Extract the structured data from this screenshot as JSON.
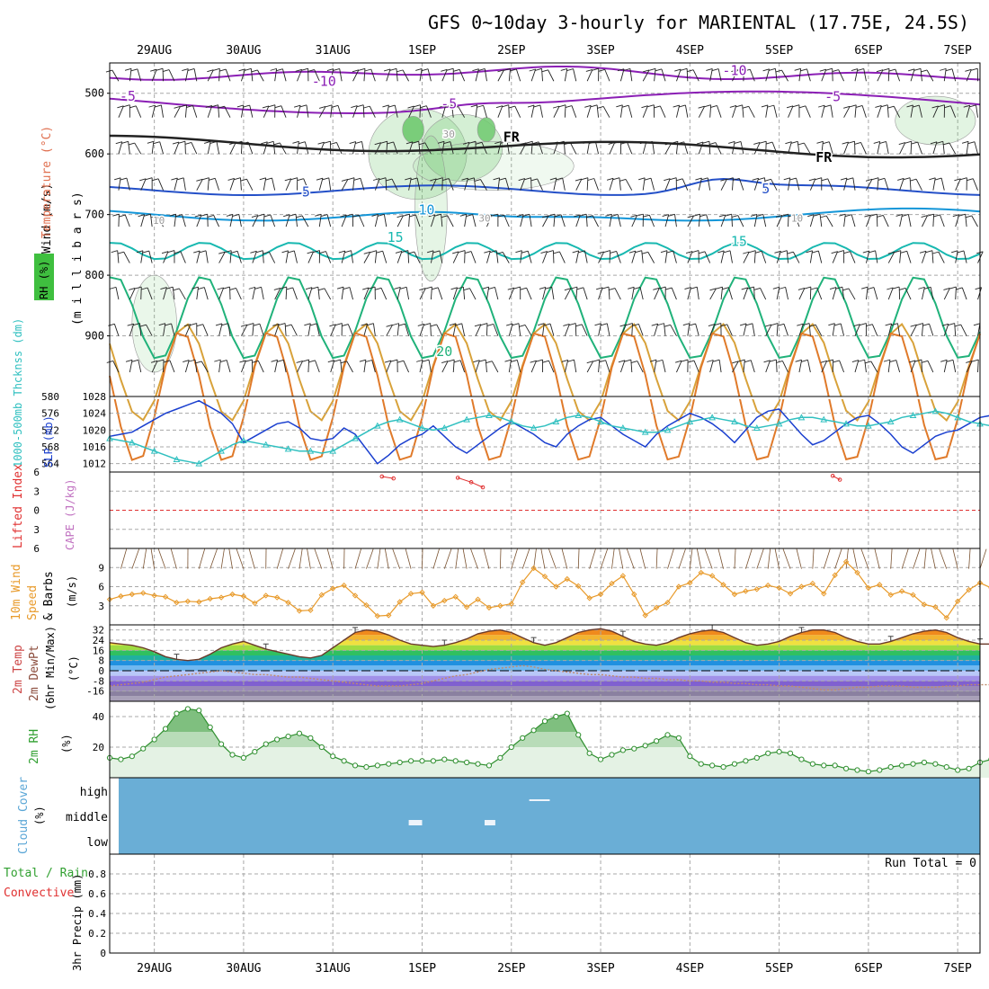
{
  "title": "GFS 0~10day 3-hourly for MARIENTAL (17.75E, 24.5S)",
  "colors": {
    "temp_minus": "#8b1fb5",
    "temp_zero": "#222222",
    "temp_5": "#2450c8",
    "temp_10": "#1496d8",
    "temp_15": "#17b8b0",
    "temp_20": "#20b27a",
    "temp_25": "#d8a23a",
    "temp_30": "#e07a2a",
    "rh_fill": "#6fc96f",
    "slp": "#1a3fcf",
    "thickness": "#30c0c0",
    "lifted_index": "#e03030",
    "wind10": "#e89a2a",
    "rh2m": "#2f8f2f",
    "cloud_fill": "#6aaed6",
    "grid": "#a8a8a8"
  },
  "chart_data": [
    {
      "panel": "upper-air",
      "type": "heatmap",
      "xlabel": "",
      "ylabel": "(m i l l i b a r s)",
      "legend_labels": [
        "Wind (m/s)",
        "Temperature (°C)",
        "RH (%)"
      ],
      "x_ticks_top": [
        "29AUG",
        "30AUG",
        "31AUG",
        "1SEP",
        "2SEP",
        "3SEP",
        "4SEP",
        "5SEP",
        "6SEP",
        "7SEP"
      ],
      "y_ticks": [
        500,
        600,
        700,
        800,
        900
      ],
      "ylim": [
        1000,
        450
      ],
      "contour_labels": [
        {
          "text": "-5",
          "pressure": 512,
          "day": 28.7
        },
        {
          "text": "-10",
          "pressure": 488,
          "day": 30.9
        },
        {
          "text": "-5",
          "pressure": 525,
          "day": 32.3
        },
        {
          "text": "-10",
          "pressure": 470,
          "day": 35.5
        },
        {
          "text": "-5",
          "pressure": 513,
          "day": 36.6
        },
        {
          "text": "FR",
          "pressure": 580,
          "day": 33.0
        },
        {
          "text": "FR",
          "pressure": 613,
          "day": 36.5
        },
        {
          "text": "5",
          "pressure": 670,
          "day": 30.7
        },
        {
          "text": "5",
          "pressure": 665,
          "day": 35.85
        },
        {
          "text": "10",
          "pressure": 700,
          "day": 32.05
        },
        {
          "text": "10",
          "pressure": 712,
          "day": 36.2
        },
        {
          "text": "15",
          "pressure": 745,
          "day": 31.7
        },
        {
          "text": "15",
          "pressure": 752,
          "day": 35.55
        },
        {
          "text": "20",
          "pressure": 933,
          "day": 32.25
        },
        {
          "text": "10",
          "pressure": 715,
          "day": 29.05
        },
        {
          "text": "30",
          "pressure": 573,
          "day": 32.3
        },
        {
          "text": "30",
          "pressure": 712,
          "day": 32.7
        }
      ]
    },
    {
      "panel": "slp-thickness",
      "type": "line",
      "ylabel_left": "1000-500mb Thcknss (dm)",
      "ylabel_right": "SLP (mb)",
      "y_ticks_left": [
        564,
        568,
        572,
        576,
        580
      ],
      "y_ticks_right": [
        1012,
        1016,
        1020,
        1024,
        1028
      ],
      "ylim_right": [
        1010,
        1028
      ],
      "ylim_left": [
        562,
        580
      ],
      "x_start_day": 28.5,
      "x_step_hours": 3,
      "series": [
        {
          "name": "SLP (mb)",
          "axis": "right",
          "values": [
            1018.5,
            1019,
            1019.5,
            1021,
            1022.5,
            1024,
            1025,
            1026,
            1027,
            1025.5,
            1024,
            1021.5,
            1017,
            1018.5,
            1020,
            1021.5,
            1022,
            1020.5,
            1018,
            1017.5,
            1018,
            1020.5,
            1019,
            1015.5,
            1012,
            1014,
            1016.5,
            1018,
            1019,
            1021,
            1018.5,
            1016,
            1014.5,
            1016.5,
            1018.5,
            1020.5,
            1022,
            1020.5,
            1019,
            1017,
            1016,
            1019,
            1021,
            1022.5,
            1023,
            1021,
            1019,
            1017.5,
            1016,
            1019,
            1021,
            1022.5,
            1024,
            1023,
            1021.5,
            1019.5,
            1017,
            1020,
            1023,
            1024.5,
            1025,
            1022,
            1019,
            1016.5,
            1017.5,
            1019.5,
            1021.5,
            1023,
            1023.5,
            1021.5,
            1019,
            1016,
            1014.5,
            1016.5,
            1018.5,
            1019.5,
            1020,
            1021.5,
            1023,
            1023.5,
            1021,
            1017.5,
            1015,
            1017.5,
            1019,
            1020,
            1020.5,
            1021.5,
            1024,
            1023.5,
            1020,
            1016.5,
            1015.5,
            1017,
            1018.5,
            1019.5,
            1021,
            1022.5
          ]
        },
        {
          "name": "Thickness (dm)",
          "axis": "left",
          "values": [
            570,
            569.5,
            569,
            568,
            567,
            566,
            565,
            564.5,
            564,
            565.5,
            567,
            568.5,
            569.5,
            569,
            568.5,
            568,
            567.5,
            567,
            567,
            566.5,
            567,
            568.5,
            570,
            571.5,
            573,
            574,
            574.5,
            573.5,
            572.5,
            572,
            572.5,
            573.5,
            574.5,
            575,
            575.5,
            575,
            574,
            573,
            572.5,
            573,
            574,
            575,
            575.5,
            575,
            574,
            573,
            572.5,
            572,
            571.5,
            571.5,
            572,
            573,
            574,
            574.5,
            575,
            574.5,
            574,
            573,
            572.5,
            573,
            573.5,
            574.5,
            575,
            575,
            574.5,
            574,
            573.5,
            573,
            573,
            573.5,
            574,
            575,
            575.5,
            576,
            576.5,
            576,
            575,
            574,
            573.5,
            573,
            573,
            573.5,
            574.5,
            575.5,
            576.5,
            577,
            576.5,
            575.5,
            574.5,
            573.5,
            573,
            572.5,
            572.5,
            571.5,
            571,
            571.5,
            572,
            573
          ]
        }
      ]
    },
    {
      "panel": "lifted-index",
      "type": "line",
      "ylabel_left": "Lifted Index",
      "ylabel_right": "CAPE (J/kg)",
      "y_ticks": [
        -6,
        -3,
        0,
        3,
        6
      ],
      "y_tick_labels": [
        "6",
        "3",
        "0",
        "3",
        "6"
      ],
      "ylim": [
        -6,
        6
      ],
      "series": [
        {
          "name": "Lifted Index segment 1",
          "x_days": [
            31.55,
            31.68
          ],
          "values": [
            -5.3,
            -5.0
          ]
        },
        {
          "name": "Lifted Index segment 2",
          "x_days": [
            32.4,
            32.55,
            32.68
          ],
          "values": [
            -5.1,
            -4.4,
            -3.6
          ]
        },
        {
          "name": "Lifted Index segment 3",
          "x_days": [
            36.6,
            36.68
          ],
          "values": [
            -5.4,
            -4.8
          ]
        }
      ]
    },
    {
      "panel": "wind10m",
      "type": "line",
      "ylabel": "10m Wind Speed & Barbs (m/s)",
      "y_ticks": [
        3,
        6,
        9
      ],
      "ylim": [
        0,
        12
      ],
      "x_start_day": 28.5,
      "x_step_hours": 3,
      "series": [
        {
          "name": "10m Wind Speed",
          "values": [
            4.0,
            4.5,
            4.8,
            5.0,
            4.6,
            4.4,
            3.5,
            3.7,
            3.6,
            4.1,
            4.3,
            4.8,
            4.5,
            3.4,
            4.6,
            4.3,
            3.5,
            2.2,
            2.3,
            4.7,
            5.7,
            6.2,
            4.6,
            3.1,
            1.4,
            1.5,
            3.6,
            4.9,
            5.1,
            3.0,
            3.8,
            4.4,
            2.8,
            4.0,
            2.7,
            3.0,
            3.3,
            6.7,
            8.9,
            7.6,
            6.0,
            7.2,
            6.1,
            4.2,
            4.8,
            6.5,
            7.7,
            4.8,
            1.5,
            2.7,
            3.5,
            6.0,
            6.6,
            8.2,
            7.7,
            6.3,
            4.8,
            5.3,
            5.6,
            6.2,
            5.8,
            4.9,
            6.0,
            6.5,
            4.9,
            7.8,
            9.9,
            8.2,
            5.8,
            6.3,
            4.7,
            5.3,
            4.7,
            3.2,
            2.8,
            1.1,
            3.7,
            5.5,
            6.6,
            5.8,
            4.3,
            5.0,
            3.8,
            4.3,
            4.7,
            4.9,
            5.2,
            5.6,
            6.0,
            5.5,
            4.8,
            6.1,
            8.0,
            5.4,
            5.0,
            5.0,
            6.0,
            5.4
          ]
        }
      ]
    },
    {
      "panel": "temp2m",
      "type": "line",
      "ylabel": "2m Temp 2m DewPt (6hr Min/Max) (°C)",
      "y_ticks": [
        -16,
        -8,
        0,
        8,
        16,
        24,
        32
      ],
      "ylim": [
        -24,
        36
      ],
      "x_start_day": 28.5,
      "x_step_hours": 3,
      "series": [
        {
          "name": "2m Temp",
          "values": [
            22,
            21,
            20,
            18,
            15,
            11,
            9,
            8,
            9,
            13,
            18,
            21,
            23,
            20,
            17,
            15,
            13,
            11,
            10,
            12,
            18,
            24,
            30,
            32,
            31,
            28,
            24,
            21,
            20,
            19,
            20,
            22,
            25,
            29,
            31,
            32,
            30,
            26,
            22,
            20,
            22,
            26,
            30,
            32,
            33,
            31,
            27,
            23,
            21,
            20,
            22,
            26,
            29,
            31,
            32,
            30,
            26,
            22,
            20,
            21,
            23,
            27,
            30,
            32,
            32,
            30,
            26,
            23,
            21,
            21,
            23,
            26,
            29,
            31,
            32,
            30,
            26,
            23,
            21,
            21,
            23,
            27,
            31,
            33,
            33,
            31,
            27,
            24,
            22,
            22,
            24,
            28,
            32,
            34,
            33,
            30,
            26,
            22
          ]
        },
        {
          "name": "2m DewPt",
          "values": [
            -12,
            -11,
            -10,
            -9,
            -7,
            -5,
            -4,
            -3,
            -2,
            -1,
            0,
            -1,
            -2,
            -3,
            -3,
            -4,
            -5,
            -5,
            -6,
            -7,
            -8,
            -9,
            -10,
            -11,
            -12,
            -12,
            -12,
            -11,
            -10,
            -8,
            -6,
            -4,
            -3,
            -1,
            1,
            2,
            3,
            4,
            3,
            1,
            0,
            -1,
            -2,
            -3,
            -3,
            -4,
            -5,
            -5,
            -6,
            -6,
            -7,
            -7,
            -8,
            -8,
            -9,
            -9,
            -10,
            -10,
            -11,
            -11,
            -12,
            -12,
            -13,
            -14,
            -15,
            -15,
            -14,
            -13,
            -13,
            -12,
            -12,
            -12,
            -13,
            -13,
            -13,
            -12,
            -12,
            -11,
            -11,
            -11,
            -12,
            -12,
            -12,
            -11,
            -11,
            -11,
            -11,
            -11,
            -11,
            -10,
            -10,
            -11,
            -11,
            -12,
            -12,
            -11,
            -11,
            -10
          ]
        }
      ]
    },
    {
      "panel": "rh2m",
      "type": "area",
      "ylabel": "2m RH (%)",
      "y_ticks": [
        20,
        40
      ],
      "ylim": [
        0,
        50
      ],
      "x_start_day": 28.5,
      "x_step_hours": 3,
      "series": [
        {
          "name": "2m RH",
          "values": [
            13,
            12,
            14,
            19,
            25,
            32,
            42,
            45,
            44,
            33,
            22,
            15,
            13,
            17,
            22,
            25,
            27,
            29,
            26,
            20,
            14,
            11,
            8,
            7,
            8,
            9,
            10,
            11,
            11,
            11,
            12,
            11,
            10,
            9,
            8,
            13,
            20,
            26,
            31,
            37,
            40,
            42,
            28,
            16,
            12,
            15,
            18,
            19,
            21,
            24,
            28,
            26,
            14,
            9,
            8,
            7,
            9,
            11,
            13,
            16,
            17,
            16,
            12,
            9,
            8,
            8,
            6,
            5,
            4,
            5,
            7,
            8,
            9,
            10,
            9,
            7,
            5,
            6,
            10,
            12,
            14,
            16,
            17,
            16,
            14,
            10,
            9,
            10,
            12,
            15,
            19,
            18,
            13,
            8,
            7,
            8,
            10,
            12
          ]
        }
      ]
    },
    {
      "panel": "cloud-cover",
      "type": "heatmap",
      "ylabel": "Cloud Cover (%)",
      "levels": [
        "high",
        "middle",
        "low"
      ],
      "gaps": [
        {
          "level": "middle",
          "from_day": 31.85,
          "to_day": 32.0
        },
        {
          "level": "middle",
          "from_day": 32.7,
          "to_day": 32.82
        },
        {
          "level": "high",
          "from_day": 33.2,
          "to_day": 33.43
        }
      ]
    },
    {
      "panel": "precip",
      "type": "bar",
      "ylabel": "3hr Precip (mm)",
      "legend_labels": [
        "Total / Rain",
        "Convective"
      ],
      "y_ticks": [
        0,
        0.2,
        0.4,
        0.6,
        0.8
      ],
      "ylim": [
        0,
        1.0
      ],
      "run_total": "Run Total = 0",
      "values": [],
      "x_ticks": [
        "29AUG",
        "30AUG",
        "31AUG",
        "1SEP",
        "2SEP",
        "3SEP",
        "4SEP",
        "5SEP",
        "6SEP",
        "7SEP"
      ]
    }
  ]
}
